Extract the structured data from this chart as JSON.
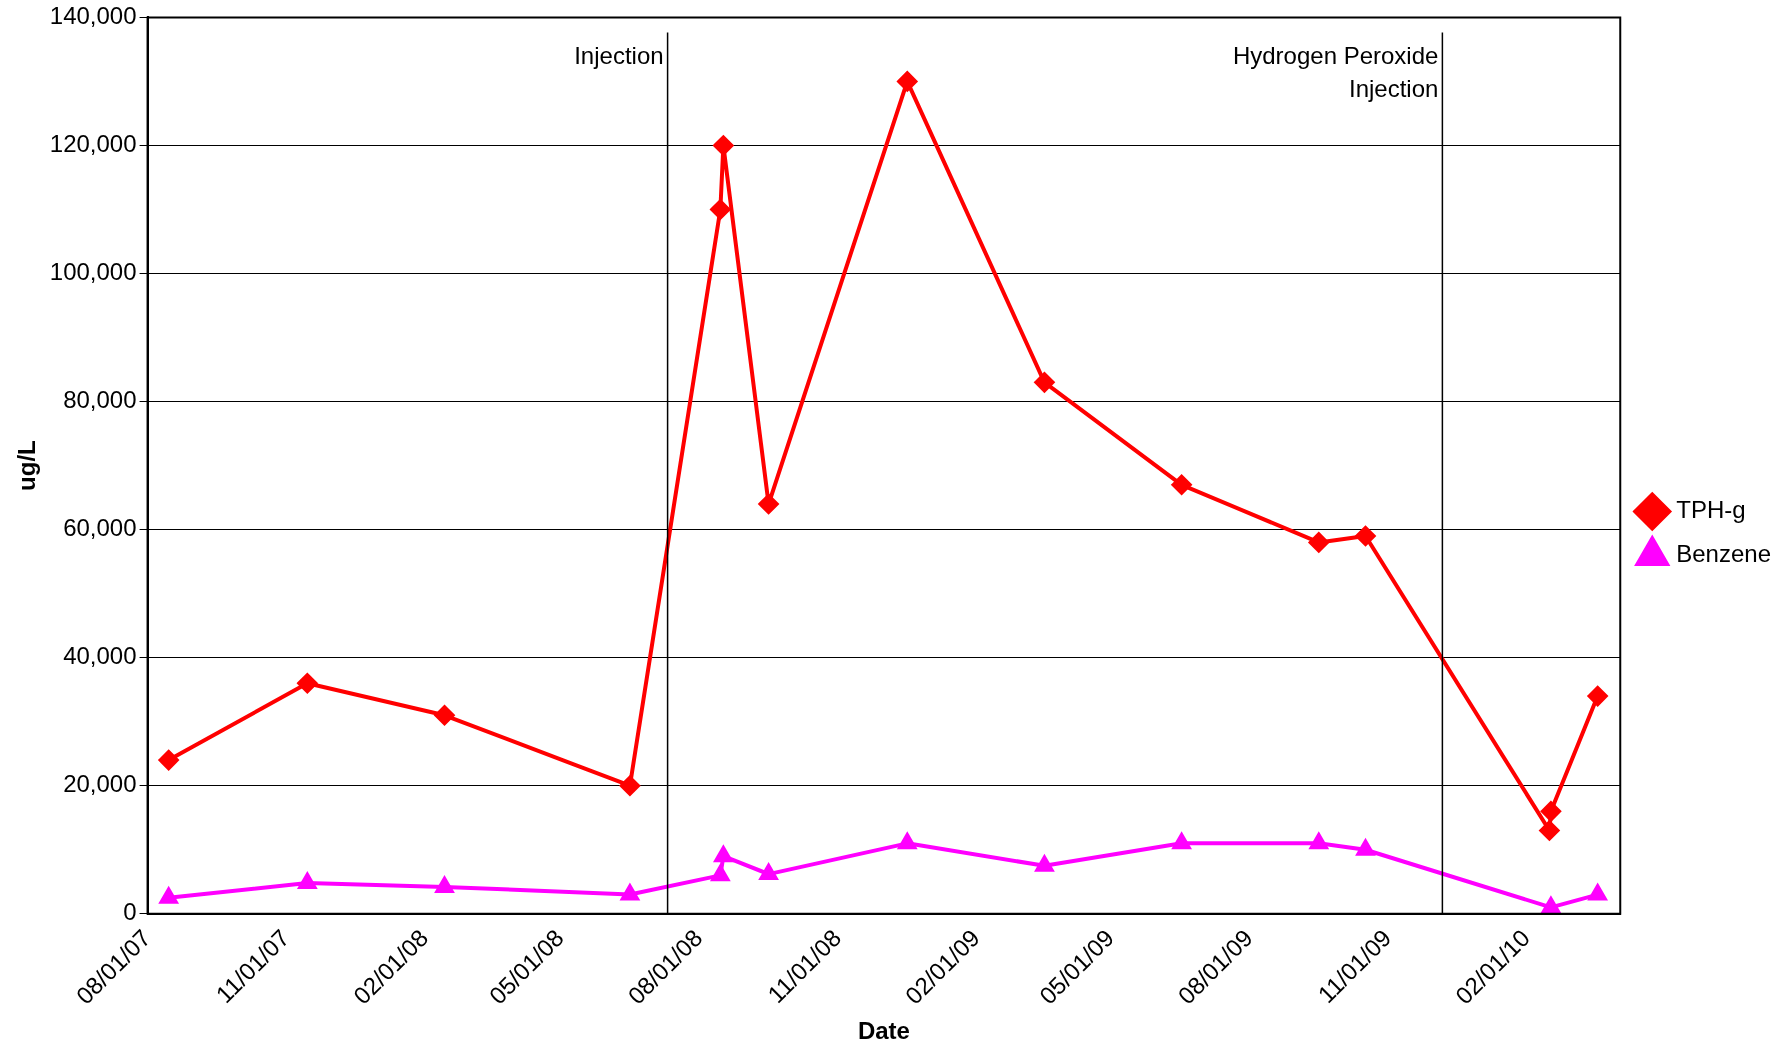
{
  "chart_data": {
    "type": "line",
    "xlabel": "Date",
    "ylabel": "ug/L",
    "x": [
      "2007-08-15",
      "2007-11-15",
      "2008-02-14",
      "2008-06-16",
      "2008-08-15",
      "2008-08-17",
      "2008-09-16",
      "2008-12-17",
      "2009-03-18",
      "2009-06-17",
      "2009-09-16",
      "2009-10-17",
      "2010-02-16",
      "2010-02-17",
      "2010-03-20"
    ],
    "series": [
      {
        "name": "TPH-g",
        "color": "#ff0000",
        "marker": "diamond",
        "values": [
          24000,
          36000,
          31000,
          20000,
          110000,
          120000,
          64000,
          130000,
          83000,
          67000,
          58000,
          59000,
          13000,
          16000,
          34000
        ]
      },
      {
        "name": "Benzene",
        "color": "#ff00ff",
        "marker": "triangle",
        "values": [
          2500,
          4800,
          4200,
          3000,
          6000,
          9000,
          6200,
          11000,
          7500,
          11000,
          11000,
          10000,
          null,
          1000,
          3000
        ]
      }
    ],
    "xlim": [
      "2007-08-01",
      "2010-04-04"
    ],
    "xticks": [
      {
        "value": "2007-08-01",
        "label": "08/01/07"
      },
      {
        "value": "2007-11-01",
        "label": "11/01/07"
      },
      {
        "value": "2008-02-01",
        "label": "02/01/08"
      },
      {
        "value": "2008-05-01",
        "label": "05/01/08"
      },
      {
        "value": "2008-08-01",
        "label": "08/01/08"
      },
      {
        "value": "2008-11-01",
        "label": "11/01/08"
      },
      {
        "value": "2009-02-01",
        "label": "02/01/09"
      },
      {
        "value": "2009-05-01",
        "label": "05/01/09"
      },
      {
        "value": "2009-08-01",
        "label": "08/01/09"
      },
      {
        "value": "2009-11-01",
        "label": "11/01/09"
      },
      {
        "value": "2010-02-01",
        "label": "02/01/10"
      }
    ],
    "ylim": [
      0,
      140000
    ],
    "yticks": [
      {
        "value": 0,
        "label": "0"
      },
      {
        "value": 20000,
        "label": "20,000"
      },
      {
        "value": 40000,
        "label": "40,000"
      },
      {
        "value": 60000,
        "label": "60,000"
      },
      {
        "value": 80000,
        "label": "80,000"
      },
      {
        "value": 100000,
        "label": "100,000"
      },
      {
        "value": 120000,
        "label": "120,000"
      },
      {
        "value": 140000,
        "label": "140,000"
      }
    ],
    "ref_lines": [
      {
        "axis": "x",
        "value": "2008-07-11",
        "label": "Injection",
        "color": "#000000"
      },
      {
        "axis": "x",
        "value": "2009-12-07",
        "label": "Hydrogen Peroxide\nInjection",
        "color": "#000000"
      }
    ],
    "grid": "y",
    "legend": "right",
    "line_style": "solid"
  }
}
